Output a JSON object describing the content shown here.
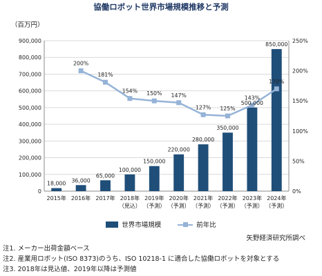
{
  "title": "協働ロボット世界市場規模推移と予測",
  "unit_label": "（百万円）",
  "source": "矢野経済研究所調べ",
  "notes": [
    "注1. メーカー出荷金額ベース",
    "注2. 産業用ロボット(ISO 8373)のうち、ISO 10218-1 に適合した協働ロボットを対象とする",
    "注3. 2018年は見込値、2019年以降は予測値"
  ],
  "legend": {
    "bar": "世界市場規模",
    "line": "前年比"
  },
  "colors": {
    "bar": "#1f4e79",
    "line": "#95b3d7",
    "grid": "#d9d9d9",
    "axis": "#888888"
  },
  "chart_data": {
    "type": "bar",
    "categories": [
      [
        "2015年"
      ],
      [
        "2016年"
      ],
      [
        "2017年"
      ],
      [
        "2018年",
        "（見込）"
      ],
      [
        "2019年",
        "（予測）"
      ],
      [
        "2020年",
        "（予測）"
      ],
      [
        "2021年",
        "（予測）"
      ],
      [
        "2022年",
        "（予測）"
      ],
      [
        "2023年",
        "（予測）"
      ],
      [
        "2024年",
        "（予測）"
      ]
    ],
    "series": [
      {
        "name": "世界市場規模",
        "type": "bar",
        "axis": "left",
        "values": [
          18000,
          36000,
          65000,
          100000,
          150000,
          220000,
          280000,
          350000,
          500000,
          850000
        ],
        "labels": [
          "18,000",
          "36,000",
          "65,000",
          "100,000",
          "150,000",
          "220,000",
          "280,000",
          "350,000",
          "500,000",
          "850,000"
        ]
      },
      {
        "name": "前年比",
        "type": "line",
        "axis": "right",
        "values": [
          null,
          200,
          181,
          154,
          150,
          147,
          127,
          125,
          143,
          170
        ],
        "labels": [
          "",
          "200%",
          "181%",
          "154%",
          "150%",
          "147%",
          "127%",
          "125%",
          "143%",
          "170%"
        ]
      }
    ],
    "y_left": {
      "min": 0,
      "max": 900000,
      "step": 100000,
      "ticks": [
        "0",
        "100,000",
        "200,000",
        "300,000",
        "400,000",
        "500,000",
        "600,000",
        "700,000",
        "800,000",
        "900,000"
      ]
    },
    "y_right": {
      "min": 0,
      "max": 250,
      "step": 50,
      "ticks": [
        "0%",
        "50%",
        "100%",
        "150%",
        "200%",
        "250%"
      ]
    },
    "grid": true,
    "legend_position": "bottom"
  }
}
